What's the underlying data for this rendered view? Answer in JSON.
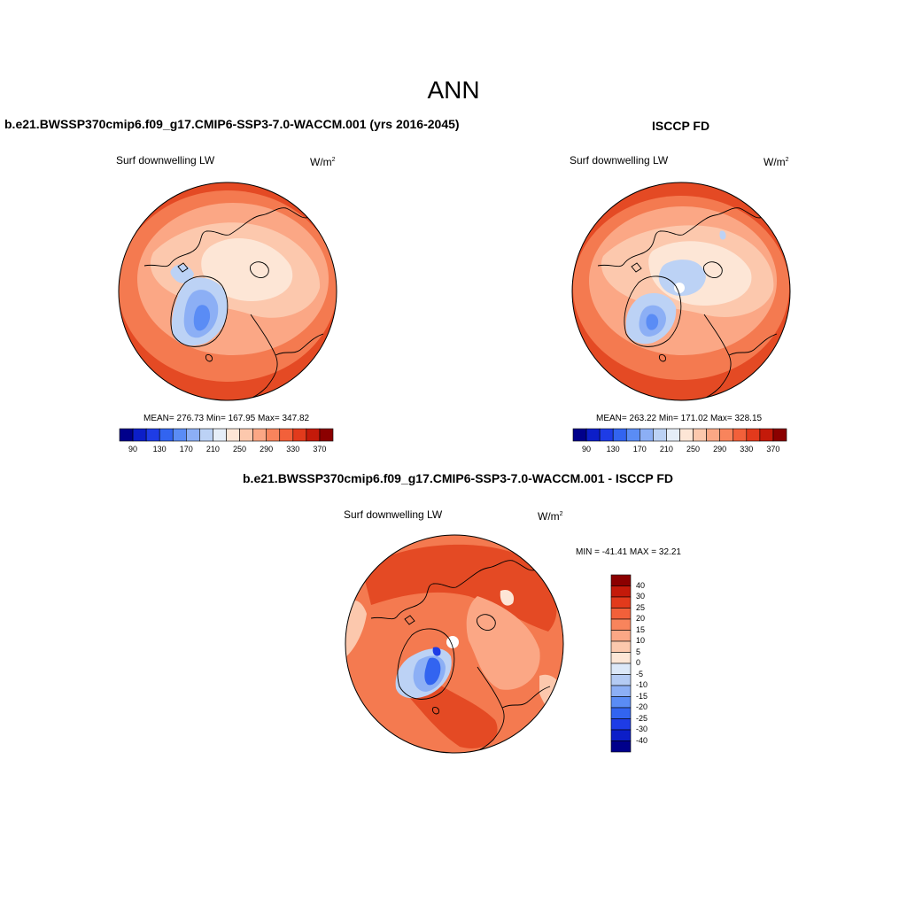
{
  "figure": {
    "title": "ANN"
  },
  "panels": {
    "model": {
      "title": "b.e21.BWSSP370cmip6.f09_g17.CMIP6-SSP3-7.0-WACCM.001 (yrs 2016-2045)",
      "variable": "Surf downwelling LW",
      "units": "W/m",
      "units_sup": "2",
      "stats": "MEAN= 276.73  Min= 167.95  Max= 347.82"
    },
    "obs": {
      "title": "ISCCP FD",
      "variable": "Surf downwelling LW",
      "units": "W/m",
      "units_sup": "2",
      "stats": "MEAN= 263.22  Min= 171.02  Max= 328.15"
    },
    "diff": {
      "title": "b.e21.BWSSP370cmip6.f09_g17.CMIP6-SSP3-7.0-WACCM.001 - ISCCP FD",
      "variable": "Surf downwelling LW",
      "units": "W/m",
      "units_sup": "2",
      "stats": "MIN = -41.41 MAX =  32.21"
    }
  },
  "colorbars": {
    "absolute": {
      "labels": [
        "90",
        "130",
        "170",
        "210",
        "250",
        "290",
        "330",
        "370"
      ],
      "colors": [
        "#00008b",
        "#0c1ec8",
        "#1e3ce6",
        "#3264f0",
        "#5a8cf5",
        "#8caff5",
        "#bcd2f5",
        "#e6eef8",
        "#fde6d6",
        "#fcc8ad",
        "#fba785",
        "#f8845c",
        "#f2603a",
        "#e23a1c",
        "#c41a0a",
        "#8b0000"
      ]
    },
    "difference": {
      "labels": [
        "40",
        "30",
        "25",
        "20",
        "15",
        "10",
        "5",
        "0",
        "-5",
        "-10",
        "-15",
        "-20",
        "-25",
        "-30",
        "-40"
      ],
      "colors": [
        "#8b0000",
        "#c41a0a",
        "#e23a1c",
        "#f2603a",
        "#f8845c",
        "#fba785",
        "#fcc8ad",
        "#fde6d6",
        "#dce8f8",
        "#b4cbf4",
        "#8caff5",
        "#5a8cf5",
        "#3264f0",
        "#1e3ce6",
        "#0c1ec8",
        "#00008b"
      ]
    }
  },
  "map_colors": {
    "ocean_hot": "#e44a24",
    "ocean_warm": "#f47a50",
    "ocean_mid": "#fba785",
    "land_cool": "#fcc8ad",
    "arctic": "#fde6d6",
    "ice_light": "#bcd2f5",
    "ice_mid": "#8caff5",
    "ice_core": "#5a8cf5",
    "ice_deep": "#3264f0",
    "diff_neg": "#1e3ce6",
    "pole_hole": "#ffffff"
  }
}
